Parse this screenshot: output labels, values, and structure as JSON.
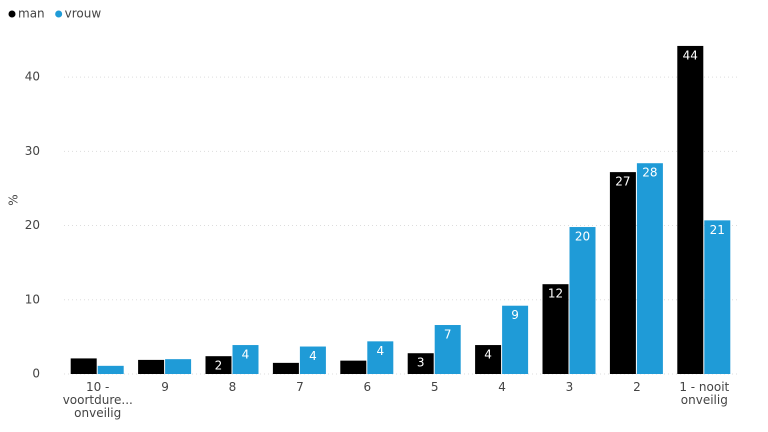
{
  "chart_data": {
    "type": "bar",
    "y_label": "%",
    "categories": [
      "10 -\nvoortdure...\nonveilig",
      "9",
      "8",
      "7",
      "6",
      "5",
      "4",
      "3",
      "2",
      "1 - nooit\nonveilig"
    ],
    "series": [
      {
        "name": "man",
        "color": "#000000",
        "values": [
          2.1,
          1.9,
          2.4,
          1.5,
          1.8,
          2.8,
          3.9,
          12.1,
          27.2,
          44.2
        ],
        "value_labels": [
          null,
          null,
          "2",
          null,
          null,
          "3",
          "4",
          "12",
          "27",
          "44"
        ]
      },
      {
        "name": "vrouw",
        "color": "#1f9bd7",
        "values": [
          1.1,
          2.0,
          3.9,
          3.7,
          4.4,
          6.6,
          9.2,
          19.8,
          28.4,
          20.7
        ],
        "value_labels": [
          null,
          null,
          "4",
          "4",
          "4",
          "7",
          "9",
          "20",
          "28",
          "21"
        ]
      }
    ],
    "ylim": [
      0,
      45
    ],
    "yticks": [
      0,
      10,
      20,
      30,
      40
    ],
    "grid": true,
    "legend": "top-left"
  }
}
